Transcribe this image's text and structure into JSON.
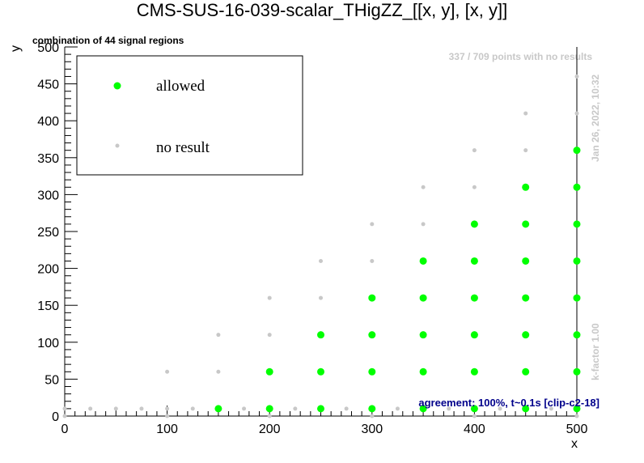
{
  "chart_data": {
    "type": "scatter",
    "title": "CMS-SUS-16-039-scalar_THigZZ_[[x, y], [x, y]]",
    "subtitle": "combination of 44 signal regions",
    "xlabel": "x",
    "ylabel": "y",
    "xlim": [
      0,
      500
    ],
    "ylim": [
      0,
      500
    ],
    "x_ticks": [
      0,
      100,
      200,
      300,
      400,
      500
    ],
    "y_ticks": [
      0,
      50,
      100,
      150,
      200,
      250,
      300,
      350,
      400,
      450,
      500
    ],
    "grid": false,
    "legend_position": "top-left",
    "series": [
      {
        "name": "allowed",
        "color": "#00ff00",
        "points": [
          [
            150,
            10
          ],
          [
            200,
            10
          ],
          [
            250,
            10
          ],
          [
            300,
            10
          ],
          [
            350,
            10
          ],
          [
            400,
            10
          ],
          [
            450,
            10
          ],
          [
            500,
            10
          ],
          [
            200,
            60
          ],
          [
            250,
            60
          ],
          [
            300,
            60
          ],
          [
            350,
            60
          ],
          [
            400,
            60
          ],
          [
            450,
            60
          ],
          [
            500,
            60
          ],
          [
            250,
            110
          ],
          [
            300,
            110
          ],
          [
            350,
            110
          ],
          [
            400,
            110
          ],
          [
            450,
            110
          ],
          [
            500,
            110
          ],
          [
            300,
            160
          ],
          [
            350,
            160
          ],
          [
            400,
            160
          ],
          [
            450,
            160
          ],
          [
            500,
            160
          ],
          [
            350,
            210
          ],
          [
            400,
            210
          ],
          [
            450,
            210
          ],
          [
            500,
            210
          ],
          [
            400,
            260
          ],
          [
            450,
            260
          ],
          [
            500,
            260
          ],
          [
            450,
            310
          ],
          [
            500,
            310
          ],
          [
            500,
            360
          ]
        ]
      },
      {
        "name": "no result",
        "color": "#c8c8c8",
        "points": [
          [
            0,
            10
          ],
          [
            25,
            10
          ],
          [
            50,
            10
          ],
          [
            75,
            10
          ],
          [
            100,
            10
          ],
          [
            125,
            10
          ],
          [
            175,
            10
          ],
          [
            225,
            10
          ],
          [
            275,
            10
          ],
          [
            325,
            10
          ],
          [
            375,
            10
          ],
          [
            425,
            10
          ],
          [
            475,
            10
          ],
          [
            0,
            0
          ],
          [
            100,
            0
          ],
          [
            200,
            0
          ],
          [
            300,
            0
          ],
          [
            400,
            0
          ],
          [
            500,
            0
          ],
          [
            100,
            60
          ],
          [
            150,
            60
          ],
          [
            150,
            110
          ],
          [
            200,
            110
          ],
          [
            200,
            160
          ],
          [
            250,
            160
          ],
          [
            250,
            210
          ],
          [
            300,
            210
          ],
          [
            300,
            260
          ],
          [
            350,
            260
          ],
          [
            350,
            310
          ],
          [
            400,
            310
          ],
          [
            400,
            360
          ],
          [
            450,
            360
          ],
          [
            450,
            410
          ],
          [
            500,
            410
          ],
          [
            500,
            460
          ]
        ]
      }
    ],
    "annotations": {
      "points_note": "337 / 709 points with no results",
      "timestamp": "Jan 26, 2022, 10:32",
      "kfactor": "k-factor 1.00",
      "agreement": "agreement: 100%, t~0.1s [clip-c2-18]"
    }
  }
}
